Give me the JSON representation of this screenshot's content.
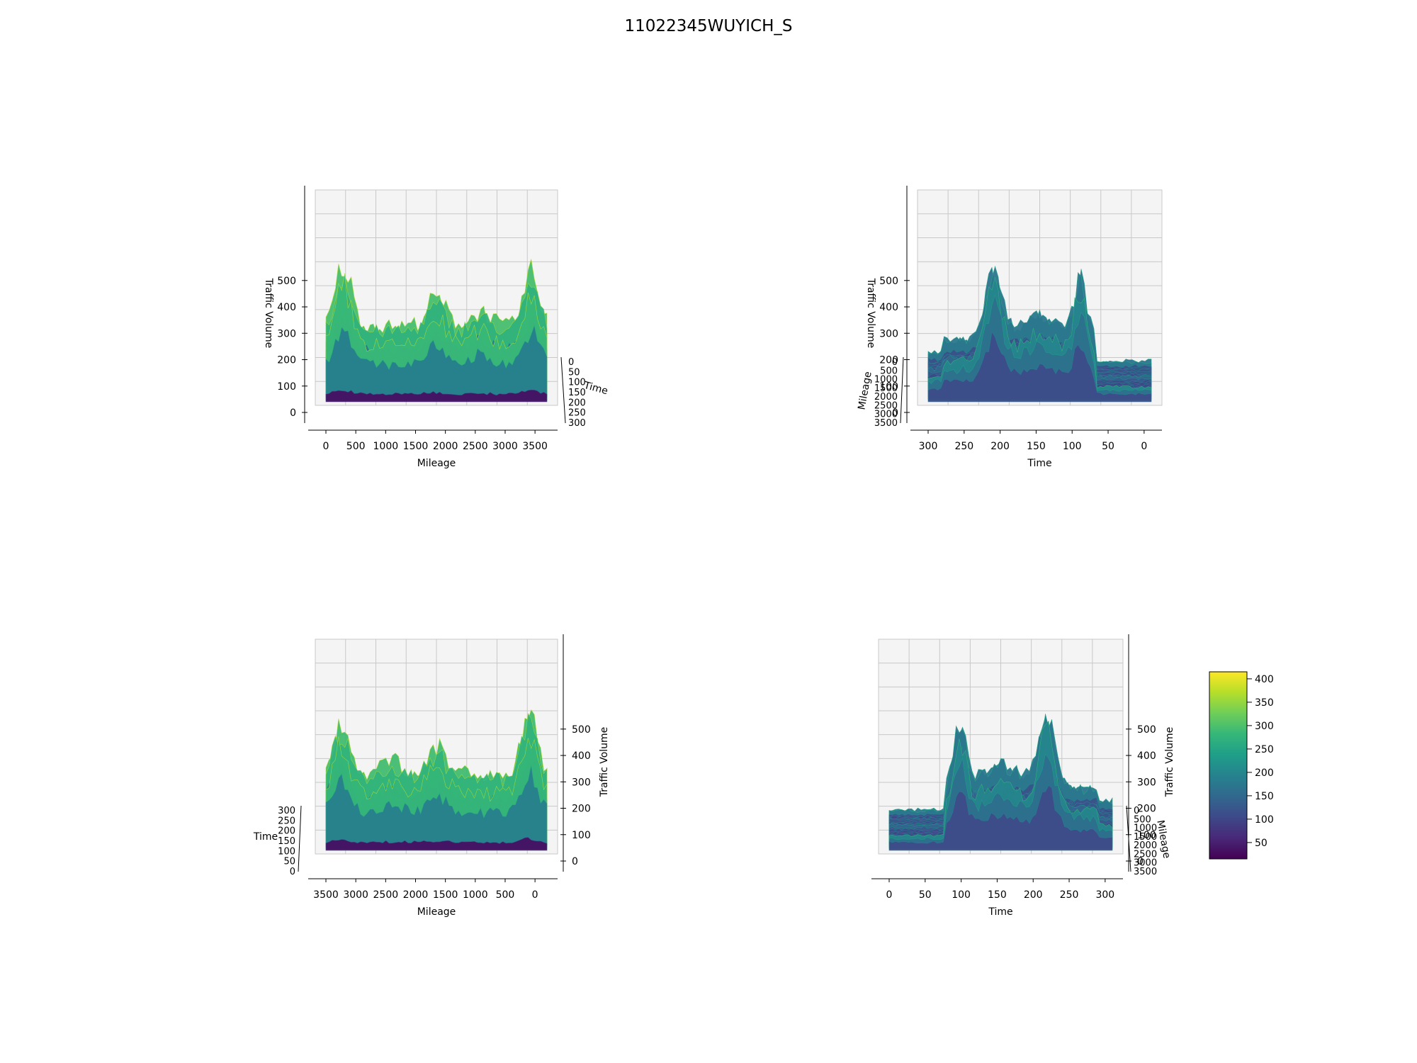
{
  "figure": {
    "title": "11022345WUYICH_S"
  },
  "colormap": {
    "name": "viridis",
    "stops": [
      "#440154",
      "#482878",
      "#3e4989",
      "#31688e",
      "#26828e",
      "#1f9e89",
      "#35b779",
      "#6ece58",
      "#b5de2b",
      "#fde725"
    ]
  },
  "chart_data": [
    {
      "type": "surface3d",
      "view": "front",
      "xlabel": "Mileage",
      "ylabel": "Time",
      "zlabel": "Traffic Volume",
      "xticks": [
        "0",
        "500",
        "1000",
        "1500",
        "2000",
        "2500",
        "3000",
        "3500"
      ],
      "yticks": [
        "0",
        "50",
        "100",
        "150",
        "200",
        "250",
        "300"
      ],
      "zticks": [
        "0",
        "100",
        "200",
        "300",
        "400",
        "500"
      ],
      "xlim": [
        0,
        3700
      ],
      "ylim": [
        0,
        300
      ],
      "zlim": [
        0,
        580
      ]
    },
    {
      "type": "surface3d",
      "view": "side-reversed",
      "xlabel": "Time",
      "ylabel": "Mileage",
      "zlabel": "Traffic Volume",
      "xticks": [
        "300",
        "250",
        "200",
        "150",
        "100",
        "50",
        "0"
      ],
      "yticks": [
        "0",
        "500",
        "1000",
        "1500",
        "2000",
        "2500",
        "3000",
        "3500"
      ],
      "zticks": [
        "0",
        "100",
        "200",
        "300",
        "400",
        "500"
      ],
      "xlim": [
        0,
        300
      ],
      "ylim": [
        0,
        3700
      ],
      "zlim": [
        0,
        580
      ]
    },
    {
      "type": "surface3d",
      "view": "back",
      "xlabel": "Mileage",
      "ylabel": "Time",
      "zlabel": "Traffic Volume",
      "xticks": [
        "3500",
        "3000",
        "2500",
        "2000",
        "1500",
        "1000",
        "500",
        "0"
      ],
      "yticks": [
        "0",
        "50",
        "100",
        "150",
        "200",
        "250",
        "300"
      ],
      "zticks": [
        "0",
        "100",
        "200",
        "300",
        "400",
        "500"
      ],
      "xlim": [
        0,
        3700
      ],
      "ylim": [
        0,
        300
      ],
      "zlim": [
        0,
        580
      ]
    },
    {
      "type": "surface3d",
      "view": "side",
      "xlabel": "Time",
      "ylabel": "Mileage",
      "zlabel": "Traffic Volume",
      "xticks": [
        "0",
        "50",
        "100",
        "150",
        "200",
        "250",
        "300"
      ],
      "yticks": [
        "0",
        "500",
        "1000",
        "1500",
        "2000",
        "2500",
        "3000",
        "3500"
      ],
      "zticks": [
        "0",
        "100",
        "200",
        "300",
        "400",
        "500"
      ],
      "xlim": [
        0,
        300
      ],
      "ylim": [
        0,
        3700
      ],
      "zlim": [
        0,
        580
      ]
    }
  ],
  "colorbar": {
    "ticks": [
      "50",
      "100",
      "150",
      "200",
      "250",
      "300",
      "350",
      "400"
    ],
    "range": [
      15,
      415
    ]
  }
}
